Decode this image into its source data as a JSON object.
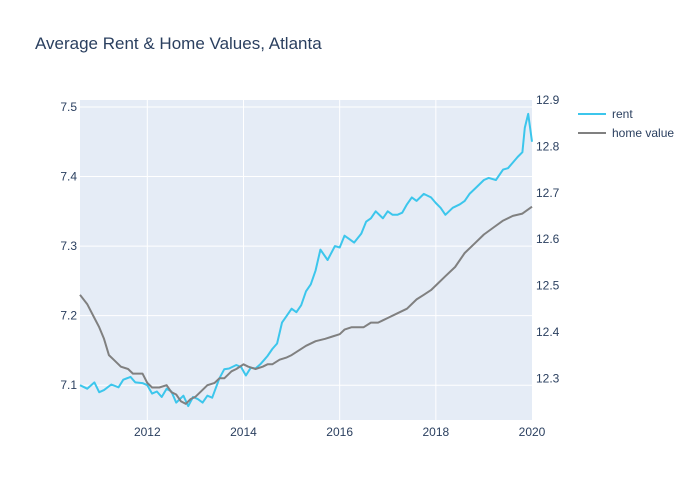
{
  "chart_data": {
    "type": "line",
    "title": "Average Rent & Home Values, Atlanta",
    "x_range": [
      2010.6,
      2020.0
    ],
    "x_ticks": [
      2012,
      2014,
      2016,
      2018,
      2020
    ],
    "x_tick_labels": [
      "2012",
      "2014",
      "2016",
      "2018",
      "2020"
    ],
    "y_left": {
      "range": [
        7.05,
        7.51
      ],
      "ticks": [
        7.1,
        7.2,
        7.3,
        7.4,
        7.5
      ],
      "tick_labels": [
        "7.1",
        "7.2",
        "7.3",
        "7.4",
        "7.5"
      ]
    },
    "y_right": {
      "range": [
        12.21,
        12.9
      ],
      "ticks": [
        12.3,
        12.4,
        12.5,
        12.6,
        12.7,
        12.8,
        12.9
      ],
      "tick_labels": [
        "12.3",
        "12.4",
        "12.5",
        "12.6",
        "12.7",
        "12.8",
        "12.9"
      ]
    },
    "grid": true,
    "legend_position": "top-right",
    "series": [
      {
        "name": "rent",
        "axis": "left",
        "color": "#3cc6ec",
        "x": [
          2010.6,
          2010.75,
          2010.9,
          2011.0,
          2011.1,
          2011.25,
          2011.4,
          2011.5,
          2011.65,
          2011.75,
          2011.9,
          2012.0,
          2012.1,
          2012.2,
          2012.3,
          2012.4,
          2012.5,
          2012.6,
          2012.75,
          2012.85,
          2012.95,
          2013.05,
          2013.15,
          2013.25,
          2013.35,
          2013.5,
          2013.6,
          2013.7,
          2013.85,
          2013.95,
          2014.05,
          2014.15,
          2014.25,
          2014.35,
          2014.45,
          2014.5,
          2014.6,
          2014.7,
          2014.8,
          2014.9,
          2015.0,
          2015.1,
          2015.2,
          2015.3,
          2015.4,
          2015.5,
          2015.6,
          2015.75,
          2015.9,
          2016.0,
          2016.1,
          2016.2,
          2016.3,
          2016.45,
          2016.55,
          2016.65,
          2016.75,
          2016.9,
          2017.0,
          2017.1,
          2017.2,
          2017.3,
          2017.4,
          2017.5,
          2017.6,
          2017.75,
          2017.9,
          2018.0,
          2018.1,
          2018.2,
          2018.35,
          2018.5,
          2018.6,
          2018.7,
          2018.85,
          2019.0,
          2019.1,
          2019.25,
          2019.4,
          2019.5,
          2019.6,
          2019.7,
          2019.8,
          2019.85,
          2019.92,
          2020.0
        ],
        "y": [
          7.1,
          7.095,
          7.104,
          7.09,
          7.093,
          7.101,
          7.097,
          7.108,
          7.112,
          7.104,
          7.103,
          7.1,
          7.088,
          7.091,
          7.083,
          7.095,
          7.091,
          7.075,
          7.085,
          7.07,
          7.083,
          7.08,
          7.075,
          7.085,
          7.082,
          7.11,
          7.123,
          7.124,
          7.129,
          7.126,
          7.114,
          7.125,
          7.124,
          7.13,
          7.138,
          7.142,
          7.152,
          7.16,
          7.19,
          7.2,
          7.21,
          7.205,
          7.215,
          7.235,
          7.245,
          7.265,
          7.295,
          7.28,
          7.3,
          7.298,
          7.315,
          7.31,
          7.305,
          7.318,
          7.335,
          7.34,
          7.35,
          7.34,
          7.35,
          7.345,
          7.345,
          7.348,
          7.36,
          7.37,
          7.365,
          7.375,
          7.37,
          7.362,
          7.355,
          7.345,
          7.355,
          7.36,
          7.365,
          7.375,
          7.385,
          7.395,
          7.398,
          7.395,
          7.41,
          7.412,
          7.42,
          7.428,
          7.435,
          7.47,
          7.49,
          7.45
        ]
      },
      {
        "name": "home value",
        "axis": "right",
        "color": "#808080",
        "x": [
          2010.6,
          2010.75,
          2010.9,
          2011.0,
          2011.1,
          2011.2,
          2011.3,
          2011.45,
          2011.6,
          2011.7,
          2011.8,
          2011.9,
          2012.0,
          2012.1,
          2012.25,
          2012.4,
          2012.5,
          2012.6,
          2012.7,
          2012.8,
          2012.9,
          2013.0,
          2013.1,
          2013.25,
          2013.4,
          2013.5,
          2013.6,
          2013.75,
          2013.85,
          2014.0,
          2014.1,
          2014.25,
          2014.4,
          2014.5,
          2014.6,
          2014.75,
          2014.9,
          2015.0,
          2015.15,
          2015.3,
          2015.5,
          2015.7,
          2015.85,
          2016.0,
          2016.1,
          2016.25,
          2016.4,
          2016.5,
          2016.65,
          2016.8,
          2016.9,
          2017.0,
          2017.2,
          2017.4,
          2017.6,
          2017.75,
          2017.9,
          2018.0,
          2018.2,
          2018.4,
          2018.6,
          2018.8,
          2019.0,
          2019.2,
          2019.4,
          2019.6,
          2019.8,
          2020.0
        ],
        "y": [
          12.48,
          12.46,
          12.43,
          12.41,
          12.385,
          12.35,
          12.34,
          12.325,
          12.32,
          12.31,
          12.31,
          12.31,
          12.29,
          12.28,
          12.28,
          12.285,
          12.27,
          12.265,
          12.25,
          12.245,
          12.255,
          12.26,
          12.27,
          12.285,
          12.29,
          12.3,
          12.3,
          12.315,
          12.32,
          12.33,
          12.325,
          12.32,
          12.325,
          12.33,
          12.33,
          12.34,
          12.345,
          12.35,
          12.36,
          12.37,
          12.38,
          12.385,
          12.39,
          12.395,
          12.405,
          12.41,
          12.41,
          12.41,
          12.42,
          12.42,
          12.425,
          12.43,
          12.44,
          12.45,
          12.47,
          12.48,
          12.49,
          12.5,
          12.52,
          12.54,
          12.57,
          12.59,
          12.61,
          12.625,
          12.64,
          12.65,
          12.655,
          12.67
        ]
      }
    ]
  }
}
